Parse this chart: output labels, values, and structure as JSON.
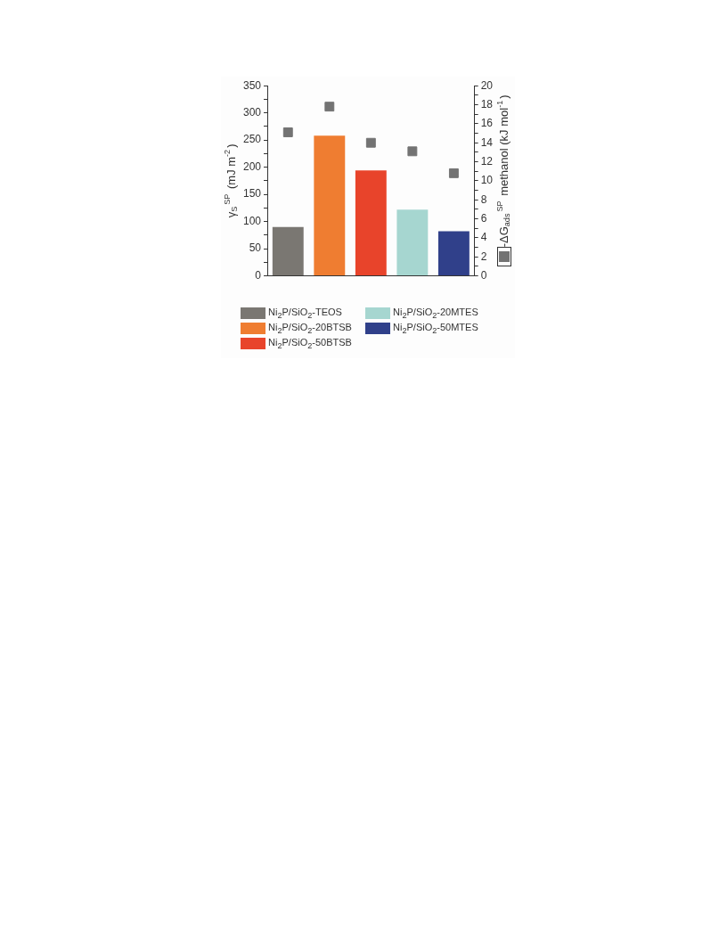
{
  "chart_data": {
    "type": "bar",
    "categories": [
      null,
      null,
      null,
      null,
      null
    ],
    "ylabel": "γ$_{S}$$^{SP}$ (mJ m$^{-2}$)",
    "y2label": "-ΔG$_{ads}$$^{SP}$ methanol (kJ mol$^{-1}$)",
    "series": [
      {
        "name": "Ni$_{2}$P/SiO$_{2}$-TEOS",
        "color": "#7a7772",
        "values": [
          90,
          null,
          null,
          null,
          null
        ]
      },
      {
        "name": "Ni$_{2}$P/SiO$_{2}$-20BTSB",
        "color": "#ef7d31",
        "values": [
          null,
          258,
          null,
          null,
          null
        ]
      },
      {
        "name": "Ni$_{2}$P/SiO$_{2}$-50BTSB",
        "color": "#e8442b",
        "values": [
          null,
          null,
          194,
          null,
          null
        ]
      },
      {
        "name": "Ni$_{2}$P/SiO$_{2}$-20MTES",
        "color": "#a6d6d0",
        "values": [
          null,
          null,
          null,
          122,
          null
        ]
      },
      {
        "name": "Ni$_{2}$P/SiO$_{2}$-50MTES",
        "color": "#30408a",
        "values": [
          null,
          null,
          null,
          null,
          82
        ]
      },
      {
        "type": "scatter",
        "axis": "y2",
        "marker": "square",
        "color": "#737373",
        "values": [
          15.1,
          17.8,
          14.0,
          13.1,
          10.8
        ]
      }
    ],
    "ylim": [
      0,
      350
    ],
    "yticks": [
      0,
      {
        "value": 25,
        "label": null
      },
      50,
      {
        "value": 75,
        "label": null
      },
      100,
      {
        "value": 125,
        "label": null
      },
      150,
      {
        "value": 175,
        "label": null
      },
      200,
      {
        "value": 225,
        "label": null
      },
      250,
      {
        "value": 275,
        "label": null
      },
      300,
      {
        "value": 325,
        "label": null
      },
      350
    ],
    "y2lim": [
      0,
      20
    ],
    "y2ticks": [
      0,
      {
        "value": 1,
        "label": null
      },
      2,
      {
        "value": 3,
        "label": null
      },
      4,
      {
        "value": 5,
        "label": null
      },
      6,
      {
        "value": 7,
        "label": null
      },
      8,
      {
        "value": 9,
        "label": null
      },
      10,
      {
        "value": 11,
        "label": null
      },
      12,
      {
        "value": 13,
        "label": null
      },
      14,
      {
        "value": 15,
        "label": null
      },
      16,
      {
        "value": 17,
        "label": null
      },
      18,
      {
        "value": 19,
        "label": null
      },
      20
    ],
    "grid": false,
    "legend": "bottom"
  }
}
